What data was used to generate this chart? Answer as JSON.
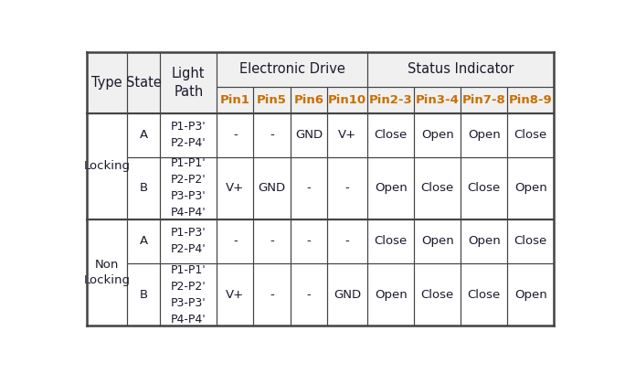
{
  "background_color": "#ffffff",
  "header_bg": "#f0f0f0",
  "border_color": "#444444",
  "text_color": "#1a1a2e",
  "pin_label_color": "#c87000",
  "font_family": "sans-serif",
  "font_size": 9.5,
  "header_font_size": 10.5,
  "pin_font_size": 9.5,
  "rows": [
    {
      "type": "Locking",
      "state": "A",
      "light_path": "P1-P3'\nP2-P4'",
      "pin1": "-",
      "pin5": "-",
      "pin6": "GND",
      "pin10": "V+",
      "pin23": "Close",
      "pin34": "Open",
      "pin78": "Open",
      "pin89": "Close"
    },
    {
      "type": "Locking",
      "state": "B",
      "light_path": "P1-P1'\nP2-P2'\nP3-P3'\nP4-P4'",
      "pin1": "V+",
      "pin5": "GND",
      "pin6": "-",
      "pin10": "-",
      "pin23": "Open",
      "pin34": "Close",
      "pin78": "Close",
      "pin89": "Open"
    },
    {
      "type": "Non\nLocking",
      "state": "A",
      "light_path": "P1-P3'\nP2-P4'",
      "pin1": "-",
      "pin5": "-",
      "pin6": "-",
      "pin10": "-",
      "pin23": "Close",
      "pin34": "Open",
      "pin78": "Open",
      "pin89": "Close"
    },
    {
      "type": "Non\nLocking",
      "state": "B",
      "light_path": "P1-P1'\nP2-P2'\nP3-P3'\nP4-P4'",
      "pin1": "V+",
      "pin5": "-",
      "pin6": "-",
      "pin10": "GND",
      "pin23": "Open",
      "pin34": "Close",
      "pin78": "Close",
      "pin89": "Open"
    }
  ]
}
